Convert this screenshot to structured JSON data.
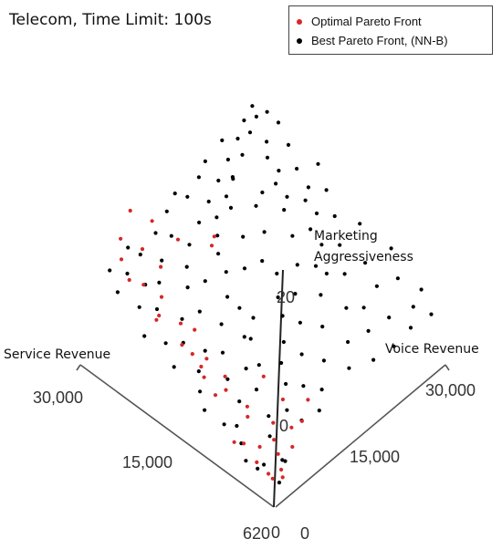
{
  "chart_data": {
    "type": "scatter",
    "title": "Telecom, Time Limit: 100s",
    "legend": {
      "placement": "top-right",
      "entries": [
        {
          "label": "Optimal Pareto Front",
          "color": "#d62728"
        },
        {
          "label": "Best Pareto Front, (NN-B)",
          "color": "#000000"
        }
      ]
    },
    "axes": {
      "service": {
        "label": "Service Revenue",
        "ticks": [
          "30,000",
          "15,000",
          "620"
        ]
      },
      "voice": {
        "label": "Voice Revenue",
        "ticks": [
          "30,000",
          "15,000",
          "0"
        ]
      },
      "marketing": {
        "label_line1": "Marketing",
        "label_line2": "Aggressiveness",
        "ticks": [
          "20",
          "0",
          "0"
        ]
      }
    },
    "series": [
      {
        "name": "Optimal Pareto Front",
        "color": "#d62728",
        "points": [
          [
            0.06,
            0.12,
            2.0
          ],
          [
            0.18,
            0.1,
            2.5
          ],
          [
            0.1,
            0.08,
            3.5
          ],
          [
            0.3,
            0.1,
            4.0
          ],
          [
            0.06,
            0.06,
            5.0
          ],
          [
            0.2,
            0.14,
            5.5
          ],
          [
            0.12,
            0.16,
            6.0
          ],
          [
            0.05,
            0.1,
            7.0
          ],
          [
            0.24,
            0.09,
            7.5
          ],
          [
            0.16,
            0.18,
            8.5
          ],
          [
            0.08,
            0.2,
            9.0
          ],
          [
            0.3,
            0.18,
            10.0
          ],
          [
            0.2,
            0.22,
            11.0
          ],
          [
            0.32,
            0.2,
            12.0
          ],
          [
            0.12,
            0.24,
            12.5
          ],
          [
            0.1,
            0.28,
            14.0
          ],
          [
            0.22,
            0.3,
            15.0
          ],
          [
            0.14,
            0.36,
            16.0
          ],
          [
            0.34,
            0.32,
            16.5
          ],
          [
            0.4,
            0.1,
            18.0
          ],
          [
            0.38,
            0.14,
            19.0
          ],
          [
            0.42,
            0.18,
            20.0
          ],
          [
            0.46,
            0.1,
            22.0
          ],
          [
            0.5,
            0.16,
            24.0
          ],
          [
            0.54,
            0.12,
            26.0
          ],
          [
            0.6,
            0.2,
            28.0
          ],
          [
            0.44,
            0.06,
            30.0
          ],
          [
            0.56,
            0.08,
            31.0
          ],
          [
            0.62,
            0.14,
            33.0
          ],
          [
            0.7,
            0.1,
            34.0
          ],
          [
            0.74,
            0.16,
            36.0
          ],
          [
            0.66,
            0.04,
            38.0
          ],
          [
            0.8,
            0.12,
            40.0
          ],
          [
            0.84,
            0.08,
            42.0
          ],
          [
            0.78,
            0.2,
            44.0
          ],
          [
            0.9,
            0.1,
            46.0
          ],
          [
            0.86,
            0.18,
            48.0
          ],
          [
            0.94,
            0.14,
            50.0
          ],
          [
            0.76,
            0.28,
            52.0
          ],
          [
            0.88,
            0.26,
            54.0
          ],
          [
            0.96,
            0.22,
            56.0
          ],
          [
            0.62,
            0.34,
            58.0
          ],
          [
            0.58,
            0.28,
            60.0
          ]
        ]
      },
      {
        "name": "Best Pareto Front, (NN-B)",
        "color": "#000000",
        "points": [
          [
            0.06,
            0.1,
            1.0
          ],
          [
            0.16,
            0.12,
            1.5
          ],
          [
            0.22,
            0.08,
            2.0
          ],
          [
            0.1,
            0.18,
            3.0
          ],
          [
            0.28,
            0.12,
            3.5
          ],
          [
            0.14,
            0.06,
            4.5
          ],
          [
            0.34,
            0.16,
            5.0
          ],
          [
            0.2,
            0.2,
            6.5
          ],
          [
            0.08,
            0.14,
            7.0
          ],
          [
            0.26,
            0.26,
            8.0
          ],
          [
            0.38,
            0.22,
            9.5
          ],
          [
            0.44,
            0.08,
            10.5
          ],
          [
            0.36,
            0.3,
            11.0
          ],
          [
            0.5,
            0.12,
            12.5
          ],
          [
            0.46,
            0.24,
            13.0
          ],
          [
            0.56,
            0.18,
            14.0
          ],
          [
            0.3,
            0.04,
            15.0
          ],
          [
            0.4,
            0.36,
            15.5
          ],
          [
            0.54,
            0.3,
            16.0
          ],
          [
            0.62,
            0.1,
            17.0
          ],
          [
            0.58,
            0.24,
            18.0
          ],
          [
            0.66,
            0.2,
            19.0
          ],
          [
            0.48,
            0.4,
            19.5
          ],
          [
            0.7,
            0.14,
            20.0
          ],
          [
            0.6,
            0.36,
            21.0
          ],
          [
            0.72,
            0.26,
            22.0
          ],
          [
            0.52,
            0.46,
            22.5
          ],
          [
            0.76,
            0.08,
            23.0
          ],
          [
            0.68,
            0.32,
            24.0
          ],
          [
            0.8,
            0.2,
            25.0
          ],
          [
            0.64,
            0.44,
            25.5
          ],
          [
            0.78,
            0.36,
            26.0
          ],
          [
            0.84,
            0.14,
            27.0
          ],
          [
            0.74,
            0.42,
            27.5
          ],
          [
            0.86,
            0.28,
            28.0
          ],
          [
            0.7,
            0.5,
            29.0
          ],
          [
            0.88,
            0.22,
            29.5
          ],
          [
            0.82,
            0.4,
            30.0
          ],
          [
            0.92,
            0.1,
            31.0
          ],
          [
            0.9,
            0.34,
            31.5
          ],
          [
            0.76,
            0.52,
            32.0
          ],
          [
            0.94,
            0.18,
            33.0
          ],
          [
            0.86,
            0.46,
            33.5
          ],
          [
            0.96,
            0.28,
            34.0
          ],
          [
            0.8,
            0.56,
            35.0
          ],
          [
            0.98,
            0.12,
            35.5
          ],
          [
            0.92,
            0.42,
            36.0
          ],
          [
            0.88,
            0.54,
            37.0
          ],
          [
            0.99,
            0.24,
            37.5
          ],
          [
            0.84,
            0.6,
            38.0
          ],
          [
            0.95,
            0.36,
            39.0
          ],
          [
            0.9,
            0.62,
            40.0
          ],
          [
            0.98,
            0.46,
            40.5
          ],
          [
            0.86,
            0.68,
            41.0
          ],
          [
            0.96,
            0.56,
            42.0
          ],
          [
            0.92,
            0.7,
            43.0
          ],
          [
            0.99,
            0.52,
            44.0
          ],
          [
            0.88,
            0.74,
            44.5
          ],
          [
            0.97,
            0.64,
            45.0
          ],
          [
            0.94,
            0.78,
            46.0
          ],
          [
            0.99,
            0.7,
            47.0
          ],
          [
            0.9,
            0.82,
            48.0
          ],
          [
            0.96,
            0.86,
            49.0
          ],
          [
            0.99,
            0.8,
            50.0
          ],
          [
            0.93,
            0.9,
            51.0
          ],
          [
            0.98,
            0.92,
            52.0
          ],
          [
            0.95,
            0.96,
            53.0
          ],
          [
            0.99,
            0.98,
            54.0
          ],
          [
            0.72,
            0.7,
            44.0
          ],
          [
            0.64,
            0.66,
            40.0
          ],
          [
            0.58,
            0.58,
            36.0
          ],
          [
            0.52,
            0.6,
            33.0
          ],
          [
            0.46,
            0.54,
            30.0
          ],
          [
            0.4,
            0.5,
            28.0
          ],
          [
            0.34,
            0.44,
            24.0
          ],
          [
            0.3,
            0.38,
            21.0
          ],
          [
            0.24,
            0.34,
            18.0
          ],
          [
            0.18,
            0.28,
            14.0
          ],
          [
            0.12,
            0.3,
            12.0
          ],
          [
            0.2,
            0.4,
            16.0
          ],
          [
            0.28,
            0.48,
            20.0
          ],
          [
            0.36,
            0.56,
            24.0
          ],
          [
            0.44,
            0.62,
            28.0
          ],
          [
            0.5,
            0.7,
            32.0
          ],
          [
            0.58,
            0.76,
            36.0
          ],
          [
            0.66,
            0.8,
            40.0
          ],
          [
            0.74,
            0.84,
            44.0
          ],
          [
            0.82,
            0.88,
            48.0
          ],
          [
            0.6,
            0.86,
            44.0
          ],
          [
            0.52,
            0.8,
            40.0
          ],
          [
            0.42,
            0.72,
            35.0
          ],
          [
            0.34,
            0.66,
            31.0
          ],
          [
            0.26,
            0.58,
            27.0
          ],
          [
            0.18,
            0.5,
            22.0
          ],
          [
            0.12,
            0.42,
            18.0
          ],
          [
            0.08,
            0.36,
            15.0
          ],
          [
            0.16,
            0.62,
            24.0
          ],
          [
            0.24,
            0.7,
            29.0
          ],
          [
            0.32,
            0.78,
            34.0
          ],
          [
            0.4,
            0.84,
            38.0
          ],
          [
            0.48,
            0.9,
            42.0
          ],
          [
            0.56,
            0.94,
            46.0
          ],
          [
            0.64,
            0.98,
            50.0
          ],
          [
            0.1,
            0.56,
            20.0
          ],
          [
            0.2,
            0.76,
            28.0
          ],
          [
            0.3,
            0.88,
            34.0
          ],
          [
            0.4,
            0.96,
            40.0
          ],
          [
            0.14,
            0.72,
            24.0
          ],
          [
            0.22,
            0.86,
            30.0
          ],
          [
            0.06,
            0.66,
            20.0
          ],
          [
            0.12,
            0.82,
            25.0
          ],
          [
            0.04,
            0.76,
            21.0
          ],
          [
            0.08,
            0.92,
            26.0
          ],
          [
            0.18,
            0.94,
            31.0
          ],
          [
            0.26,
            0.99,
            36.0
          ],
          [
            0.04,
            0.86,
            23.0
          ],
          [
            0.02,
            0.96,
            24.0
          ],
          [
            0.1,
            0.99,
            28.0
          ],
          [
            0.7,
            0.92,
            48.0
          ],
          [
            0.78,
            0.96,
            51.0
          ],
          [
            0.86,
            0.99,
            54.0
          ],
          [
            0.62,
            0.9,
            46.0
          ],
          [
            0.54,
            0.86,
            42.0
          ],
          [
            0.46,
            0.8,
            37.0
          ],
          [
            0.38,
            0.74,
            33.0
          ],
          [
            0.86,
            0.92,
            50.0
          ],
          [
            0.92,
            0.99,
            55.0
          ],
          [
            0.76,
            0.88,
            46.0
          ],
          [
            0.68,
            0.84,
            42.0
          ],
          [
            0.7,
            0.6,
            38.0
          ],
          [
            0.62,
            0.52,
            34.0
          ],
          [
            0.54,
            0.4,
            29.0
          ],
          [
            0.46,
            0.34,
            25.0
          ],
          [
            0.38,
            0.26,
            21.0
          ],
          [
            0.8,
            0.64,
            42.0
          ],
          [
            0.86,
            0.72,
            46.0
          ],
          [
            0.74,
            0.76,
            45.0
          ]
        ]
      }
    ]
  }
}
